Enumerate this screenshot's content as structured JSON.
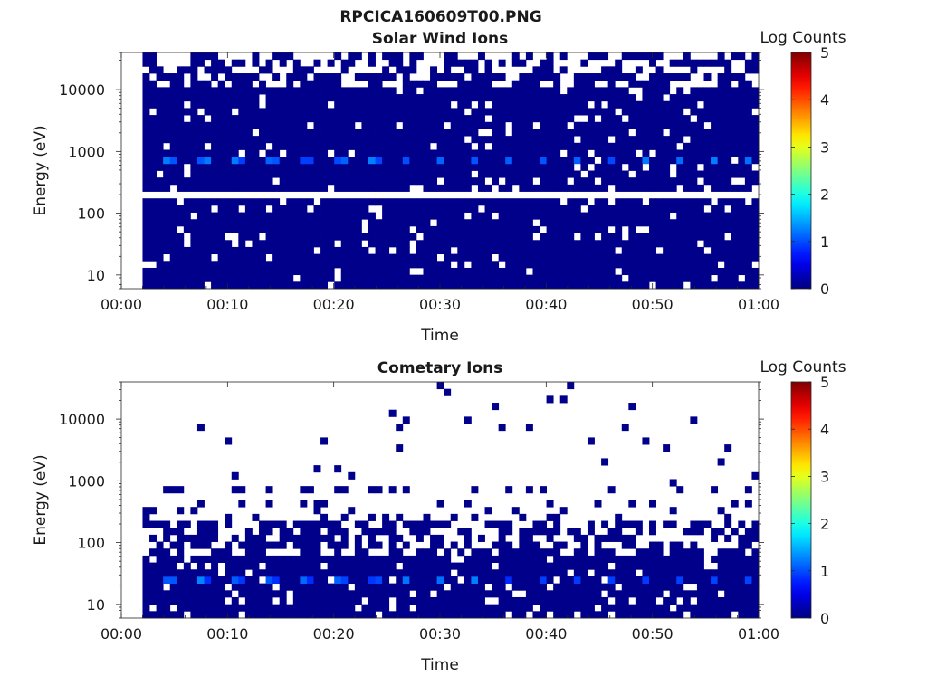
{
  "figure": {
    "title": "RPCICA160609T00.PNG"
  },
  "chart_data": [
    {
      "type": "heatmap",
      "title": "Solar Wind Ions",
      "xlabel": "Time",
      "ylabel": "Energy (eV)",
      "y_scale": "log",
      "x_range": [
        "00:00",
        "01:00"
      ],
      "x_ticks": [
        "00:00",
        "00:10",
        "00:20",
        "00:30",
        "00:40",
        "00:50",
        "01:00"
      ],
      "ylim": [
        6,
        40000
      ],
      "y_ticks": [
        10,
        100,
        1000,
        10000
      ],
      "y_tick_labels": [
        "10",
        "100",
        "1000",
        "10000"
      ],
      "data_start": "00:02",
      "data_end": "01:00",
      "gap_energy": 200,
      "peak_energy": 750,
      "peak_level": 1.3,
      "peak_period_min": 3.2,
      "background_level": 0.05,
      "colorbar": {
        "title": "Log Counts",
        "range": [
          0,
          5
        ],
        "ticks": [
          "0",
          "1",
          "2",
          "3",
          "4",
          "5"
        ],
        "colormap": "jet"
      }
    },
    {
      "type": "heatmap",
      "title": "Cometary Ions",
      "xlabel": "Time",
      "ylabel": "Energy (eV)",
      "y_scale": "log",
      "x_range": [
        "00:00",
        "01:00"
      ],
      "x_ticks": [
        "00:00",
        "00:10",
        "00:20",
        "00:30",
        "00:40",
        "00:50",
        "01:00"
      ],
      "ylim": [
        6,
        40000
      ],
      "y_ticks": [
        10,
        100,
        1000,
        10000
      ],
      "y_tick_labels": [
        "10",
        "100",
        "1000",
        "10000"
      ],
      "data_start": "00:02",
      "data_end": "01:00",
      "peak_energy": 25,
      "peak_level": 1.3,
      "peak_period_min": 3.2,
      "high_band_energy": 800,
      "background_level": 0.05,
      "colorbar": {
        "title": "Log Counts",
        "range": [
          0,
          5
        ],
        "ticks": [
          "0",
          "1",
          "2",
          "3",
          "4",
          "5"
        ],
        "colormap": "jet"
      }
    }
  ]
}
